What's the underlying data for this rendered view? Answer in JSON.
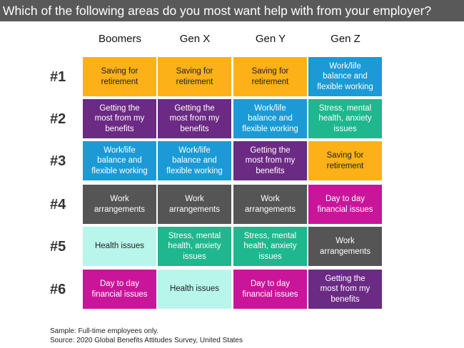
{
  "title": "Which of the following areas do you most want help with from your employer?",
  "columns": [
    "Boomers",
    "Gen X",
    "Gen Y",
    "Gen Z"
  ],
  "rows": [
    "#1",
    "#2",
    "#3",
    "#4",
    "#5",
    "#6"
  ],
  "cells": [
    [
      {
        "text": "Saving for\nretirement",
        "bg": "#FBB117",
        "fg": "#222222"
      },
      {
        "text": "Saving for\nretirement",
        "bg": "#FBB117",
        "fg": "#222222"
      },
      {
        "text": "Saving for\nretirement",
        "bg": "#FBB117",
        "fg": "#222222"
      },
      {
        "text": "Work/life\nbalance and\nflexible working",
        "bg": "#1B9AD6",
        "fg": "#ffffff"
      }
    ],
    [
      {
        "text": "Getting the\nmost from my\nbenefits",
        "bg": "#6B2A83",
        "fg": "#ffffff"
      },
      {
        "text": "Getting the\nmost from my\nbenefits",
        "bg": "#6B2A83",
        "fg": "#ffffff"
      },
      {
        "text": "Work/life\nbalance and\nflexible working",
        "bg": "#1B9AD6",
        "fg": "#ffffff"
      },
      {
        "text": "Stress, mental\nhealth, anxiety\nissues",
        "bg": "#1FB78D",
        "fg": "#ffffff"
      }
    ],
    [
      {
        "text": "Work/life\nbalance and\nflexible working",
        "bg": "#1B9AD6",
        "fg": "#ffffff"
      },
      {
        "text": "Work/life\nbalance and\nflexible working",
        "bg": "#1B9AD6",
        "fg": "#ffffff"
      },
      {
        "text": "Getting the\nmost from my\nbenefits",
        "bg": "#6B2A83",
        "fg": "#ffffff"
      },
      {
        "text": "Saving for\nretirement",
        "bg": "#FBB117",
        "fg": "#222222"
      }
    ],
    [
      {
        "text": "Work\narrangements",
        "bg": "#555555",
        "fg": "#ffffff"
      },
      {
        "text": "Work\narrangements",
        "bg": "#555555",
        "fg": "#ffffff"
      },
      {
        "text": "Work\narrangements",
        "bg": "#555555",
        "fg": "#ffffff"
      },
      {
        "text": "Day to day\nfinancial issues",
        "bg": "#C9159A",
        "fg": "#ffffff"
      }
    ],
    [
      {
        "text": "Health issues",
        "bg": "#B8F5EA",
        "fg": "#222222"
      },
      {
        "text": "Stress, mental\nhealth, anxiety\nissues",
        "bg": "#1FB78D",
        "fg": "#ffffff"
      },
      {
        "text": "Stress, mental\nhealth, anxiety\nissues",
        "bg": "#1FB78D",
        "fg": "#ffffff"
      },
      {
        "text": "Work\narrangements",
        "bg": "#555555",
        "fg": "#ffffff"
      }
    ],
    [
      {
        "text": "Day to day\nfinancial issues",
        "bg": "#C9159A",
        "fg": "#ffffff"
      },
      {
        "text": "Health issues",
        "bg": "#B8F5EA",
        "fg": "#222222"
      },
      {
        "text": "Day to day\nfinancial issues",
        "bg": "#C9159A",
        "fg": "#ffffff"
      },
      {
        "text": "Getting the\nmost from my\nbenefits",
        "bg": "#6B2A83",
        "fg": "#ffffff"
      }
    ]
  ],
  "footer": {
    "sample": "Sample: Full-time employees only.",
    "source": "Source: 2020 Global Benefits Attitudes Survey, United States"
  }
}
